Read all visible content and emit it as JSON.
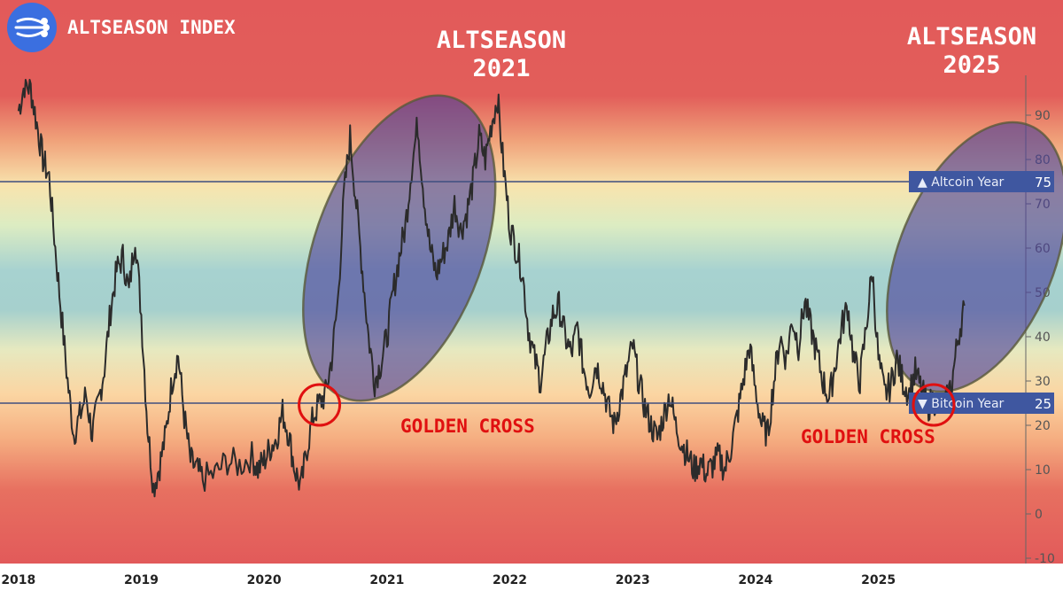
{
  "brand": {
    "title": "ALTSEASON INDEX",
    "icon": "lines-logo-icon",
    "logo_color": "#3b6fe0"
  },
  "annotations": {
    "altseason_2021": [
      "ALTSEASON",
      "2021"
    ],
    "altseason_2025": [
      "ALTSEASON",
      "2025"
    ],
    "golden_cross_1": "GOLDEN CROSS",
    "golden_cross_2": "GOLDEN CROSS"
  },
  "colors": {
    "line": "#2b2b2b",
    "ellipse_fill": "#4b3f9a",
    "highlight_circle": "#e01010",
    "threshold_label_bg": "#3f57a0",
    "annotation_text": "#e01010"
  },
  "chart_data": {
    "type": "line",
    "title": "",
    "xlabel": "",
    "ylabel": "",
    "ylim": [
      -10,
      98
    ],
    "yticks": [
      -10,
      0,
      10,
      20,
      30,
      40,
      50,
      60,
      70,
      80,
      90
    ],
    "xlim": [
      2017.85,
      2026.2
    ],
    "xticks": [
      2018,
      2019,
      2020,
      2021,
      2022,
      2023,
      2024,
      2025
    ],
    "thresholds": [
      {
        "name": "Altcoin Year",
        "value": 75,
        "marker": "▲"
      },
      {
        "name": "Bitcoin Year",
        "value": 25,
        "marker": "▼"
      }
    ],
    "grid": false,
    "series": [
      {
        "values": [
          [
            2018.0,
            91
          ],
          [
            2018.05,
            97
          ],
          [
            2018.1,
            96
          ],
          [
            2018.15,
            88
          ],
          [
            2018.2,
            80
          ],
          [
            2018.25,
            76
          ],
          [
            2018.3,
            60
          ],
          [
            2018.35,
            45
          ],
          [
            2018.4,
            30
          ],
          [
            2018.45,
            18
          ],
          [
            2018.5,
            22
          ],
          [
            2018.55,
            27
          ],
          [
            2018.6,
            18
          ],
          [
            2018.65,
            25
          ],
          [
            2018.7,
            33
          ],
          [
            2018.75,
            46
          ],
          [
            2018.8,
            55
          ],
          [
            2018.85,
            58
          ],
          [
            2018.9,
            50
          ],
          [
            2018.95,
            63
          ],
          [
            2019.0,
            45
          ],
          [
            2019.05,
            20
          ],
          [
            2019.1,
            6
          ],
          [
            2019.15,
            11
          ],
          [
            2019.2,
            18
          ],
          [
            2019.25,
            30
          ],
          [
            2019.3,
            36
          ],
          [
            2019.35,
            22
          ],
          [
            2019.4,
            12
          ],
          [
            2019.45,
            10
          ],
          [
            2019.5,
            8
          ],
          [
            2019.6,
            9
          ],
          [
            2019.7,
            12
          ],
          [
            2019.8,
            11
          ],
          [
            2019.9,
            13
          ],
          [
            2019.95,
            10
          ],
          [
            2020.0,
            12
          ],
          [
            2020.05,
            15
          ],
          [
            2020.1,
            17
          ],
          [
            2020.15,
            23
          ],
          [
            2020.2,
            18
          ],
          [
            2020.25,
            10
          ],
          [
            2020.3,
            6
          ],
          [
            2020.35,
            15
          ],
          [
            2020.4,
            22
          ],
          [
            2020.45,
            25
          ],
          [
            2020.5,
            27
          ],
          [
            2020.55,
            35
          ],
          [
            2020.6,
            48
          ],
          [
            2020.65,
            72
          ],
          [
            2020.7,
            85
          ],
          [
            2020.75,
            70
          ],
          [
            2020.8,
            55
          ],
          [
            2020.85,
            40
          ],
          [
            2020.9,
            30
          ],
          [
            2020.95,
            34
          ],
          [
            2021.0,
            40
          ],
          [
            2021.05,
            50
          ],
          [
            2021.1,
            58
          ],
          [
            2021.15,
            65
          ],
          [
            2021.2,
            78
          ],
          [
            2021.25,
            88
          ],
          [
            2021.3,
            72
          ],
          [
            2021.35,
            60
          ],
          [
            2021.4,
            54
          ],
          [
            2021.45,
            58
          ],
          [
            2021.5,
            62
          ],
          [
            2021.55,
            70
          ],
          [
            2021.6,
            64
          ],
          [
            2021.65,
            68
          ],
          [
            2021.7,
            75
          ],
          [
            2021.75,
            85
          ],
          [
            2021.8,
            80
          ],
          [
            2021.85,
            88
          ],
          [
            2021.9,
            94
          ],
          [
            2021.95,
            78
          ],
          [
            2022.0,
            65
          ],
          [
            2022.05,
            60
          ],
          [
            2022.1,
            55
          ],
          [
            2022.15,
            42
          ],
          [
            2022.2,
            35
          ],
          [
            2022.25,
            30
          ],
          [
            2022.3,
            38
          ],
          [
            2022.35,
            45
          ],
          [
            2022.4,
            47
          ],
          [
            2022.45,
            40
          ],
          [
            2022.5,
            36
          ],
          [
            2022.55,
            42
          ],
          [
            2022.6,
            33
          ],
          [
            2022.65,
            28
          ],
          [
            2022.7,
            34
          ],
          [
            2022.75,
            30
          ],
          [
            2022.8,
            24
          ],
          [
            2022.85,
            20
          ],
          [
            2022.9,
            26
          ],
          [
            2022.95,
            32
          ],
          [
            2023.0,
            38
          ],
          [
            2023.05,
            30
          ],
          [
            2023.1,
            24
          ],
          [
            2023.15,
            20
          ],
          [
            2023.2,
            17
          ],
          [
            2023.25,
            22
          ],
          [
            2023.3,
            27
          ],
          [
            2023.35,
            20
          ],
          [
            2023.4,
            16
          ],
          [
            2023.45,
            13
          ],
          [
            2023.5,
            10
          ],
          [
            2023.55,
            12
          ],
          [
            2023.6,
            9
          ],
          [
            2023.65,
            11
          ],
          [
            2023.7,
            13
          ],
          [
            2023.75,
            10
          ],
          [
            2023.8,
            15
          ],
          [
            2023.85,
            22
          ],
          [
            2023.9,
            30
          ],
          [
            2023.95,
            38
          ],
          [
            2024.0,
            28
          ],
          [
            2024.05,
            20
          ],
          [
            2024.1,
            18
          ],
          [
            2024.15,
            30
          ],
          [
            2024.2,
            40
          ],
          [
            2024.25,
            35
          ],
          [
            2024.3,
            44
          ],
          [
            2024.35,
            38
          ],
          [
            2024.4,
            48
          ],
          [
            2024.45,
            42
          ],
          [
            2024.5,
            36
          ],
          [
            2024.55,
            30
          ],
          [
            2024.6,
            26
          ],
          [
            2024.65,
            34
          ],
          [
            2024.7,
            42
          ],
          [
            2024.75,
            47
          ],
          [
            2024.8,
            35
          ],
          [
            2024.85,
            30
          ],
          [
            2024.9,
            42
          ],
          [
            2024.95,
            55
          ],
          [
            2025.0,
            35
          ],
          [
            2025.05,
            27
          ],
          [
            2025.1,
            29
          ],
          [
            2025.15,
            35
          ],
          [
            2025.2,
            30
          ],
          [
            2025.25,
            27
          ],
          [
            2025.3,
            32
          ],
          [
            2025.35,
            28
          ],
          [
            2025.4,
            24
          ],
          [
            2025.45,
            26
          ],
          [
            2025.5,
            24
          ],
          [
            2025.55,
            25
          ],
          [
            2025.6,
            30
          ],
          [
            2025.65,
            40
          ],
          [
            2025.7,
            47
          ]
        ]
      }
    ]
  }
}
